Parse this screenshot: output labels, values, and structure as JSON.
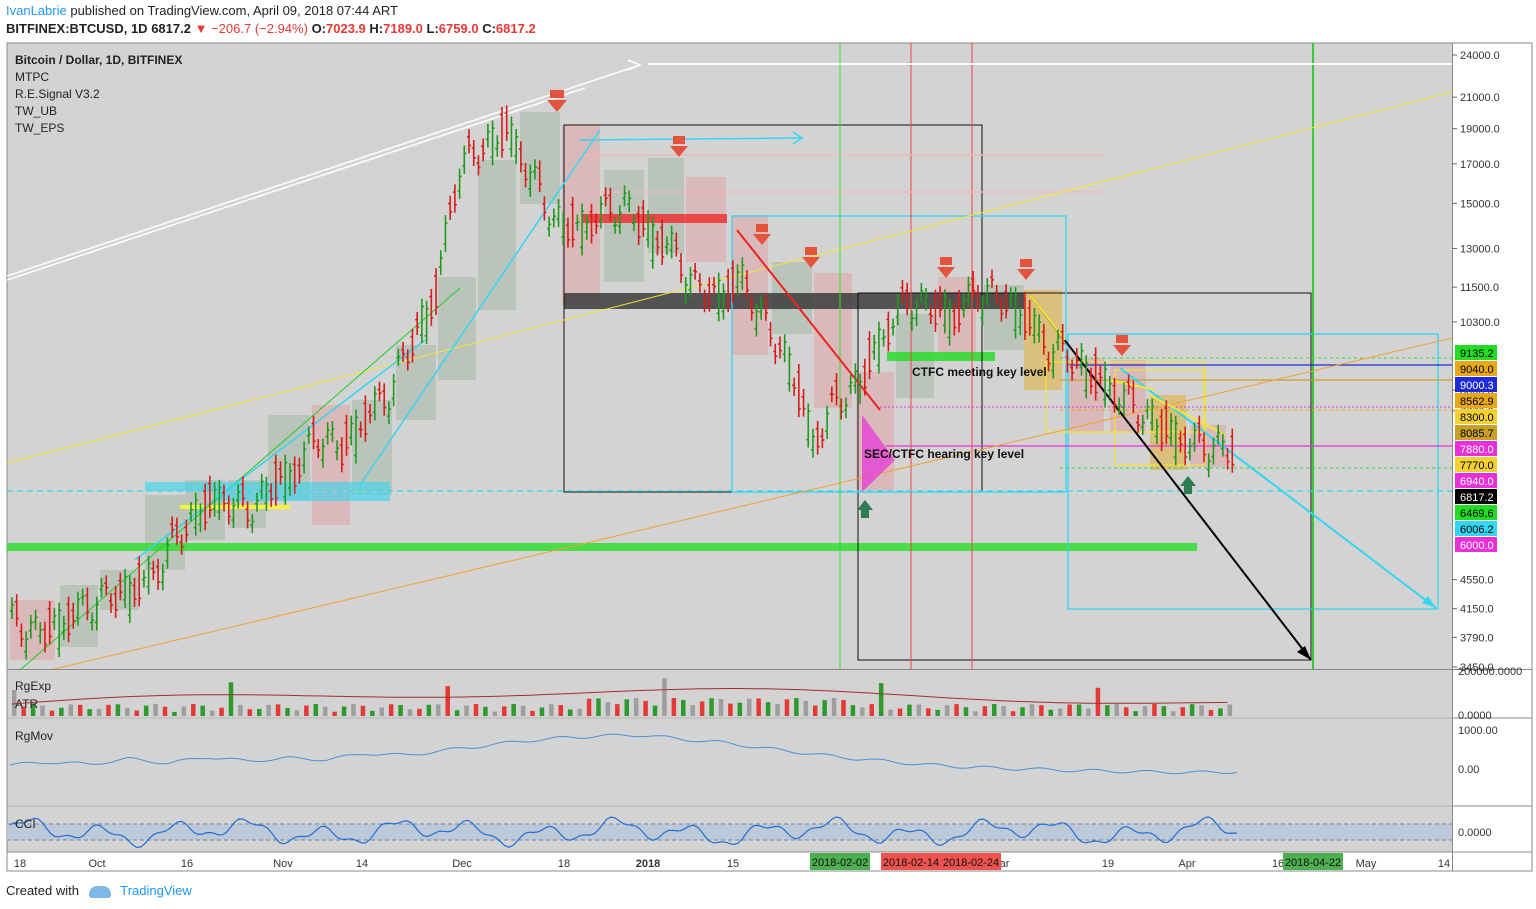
{
  "header": {
    "author": "IvanLabrie",
    "published_text": "published on TradingView.com, April 09, 2018 07:44 ART",
    "symbol": "BITFINEX:BTCUSD, 1D",
    "last": "6817.2",
    "change": "−206.7 (−2.94%)",
    "open_label": "O:",
    "open": "7023.9",
    "high_label": "H:",
    "high": "7189.0",
    "low_label": "L:",
    "low": "6759.0",
    "close_label": "C:",
    "close": "6817.2"
  },
  "legend": {
    "title": "Bitcoin / Dollar, 1D, BITFINEX",
    "indicators": [
      "MTPC",
      "R.E.Signal V3.2",
      "TW_UB",
      "TW_EPS"
    ]
  },
  "panes": {
    "volume": [
      "RgExp",
      "ATR"
    ],
    "momentum": "RgMov",
    "cci": "CCI"
  },
  "annotations": {
    "ctfc": "CTFC meeting key level",
    "sec": "SEC/CTFC hearing key level"
  },
  "footer": {
    "created": "Created with",
    "brand": "TradingView"
  },
  "chart_data": {
    "type": "line",
    "y_ticks": [
      "24000.0",
      "21000.0",
      "19000.0",
      "17000.0",
      "15000.0",
      "13000.0",
      "11500.0",
      "10300.0",
      "8300.0",
      "7770.0",
      "4550.0",
      "4150.0",
      "3790.0",
      "3450.0"
    ],
    "x_ticks": [
      "18",
      "Oct",
      "16",
      "Nov",
      "14",
      "Dec",
      "18",
      "2018",
      "15",
      "Mar",
      "19",
      "Apr",
      "16",
      "May",
      "14"
    ],
    "x_highlight_labels": [
      {
        "label": "2018-02-02",
        "color": "#4caf50"
      },
      {
        "label": "2018-02-14",
        "color": "#ef5350"
      },
      {
        "label": "2018-02-24",
        "color": "#ef5350"
      },
      {
        "label": "2018-04-22",
        "color": "#4caf50"
      }
    ],
    "price_labels": [
      {
        "value": "9135.2",
        "bg": "#22dd22",
        "fg": "#000000"
      },
      {
        "value": "9040.0",
        "bg": "#e6a817",
        "fg": "#000000"
      },
      {
        "value": "9000.3",
        "bg": "#1e2bd6",
        "fg": "#ffffff"
      },
      {
        "value": "8562.9",
        "bg": "#e6a817",
        "fg": "#000000"
      },
      {
        "value": "8300.0",
        "bg": "#f5d033",
        "fg": "#000000"
      },
      {
        "value": "8085.7",
        "bg": "#c8a028",
        "fg": "#000000"
      },
      {
        "value": "7880.0",
        "bg": "#e830d8",
        "fg": "#ffffff"
      },
      {
        "value": "7770.0",
        "bg": "#f5d033",
        "fg": "#000000"
      },
      {
        "value": "6940.0",
        "bg": "#e830d8",
        "fg": "#ffffff"
      },
      {
        "value": "6817.2",
        "bg": "#000000",
        "fg": "#ffffff"
      },
      {
        "value": "6469.6",
        "bg": "#22dd22",
        "fg": "#000000"
      },
      {
        "value": "6006.2",
        "bg": "#33d6f0",
        "fg": "#000000"
      },
      {
        "value": "6000.0",
        "bg": "#e830d8",
        "fg": "#ffffff"
      }
    ],
    "volume_ticks": [
      "200000.0000",
      "0.0000"
    ],
    "momentum_ticks": [
      "1000.00",
      "0.00"
    ],
    "cci_ticks": [
      "0.0000"
    ],
    "price_series": [
      4000,
      3850,
      3950,
      4150,
      4300,
      4400,
      4600,
      5200,
      5700,
      5900,
      5650,
      6100,
      6400,
      7200,
      6900,
      7600,
      8200,
      9700,
      11200,
      16800,
      17900,
      18900,
      16500,
      14200,
      13800,
      14500,
      14900,
      13700,
      13000,
      11500,
      11200,
      11800,
      10200,
      9000,
      7000,
      8000,
      8500,
      9900,
      11000,
      10800,
      10500,
      11400,
      11100,
      10500,
      9500,
      9200,
      8600,
      8200,
      7700,
      7300,
      7000,
      6940,
      6817
    ],
    "momentum_series": [
      100,
      180,
      120,
      260,
      150,
      310,
      200,
      280,
      240,
      400,
      350,
      480,
      600,
      720,
      800,
      850,
      870,
      760,
      680,
      540,
      420,
      300,
      210,
      120,
      60,
      20,
      -10,
      -40,
      -60,
      -80,
      -90,
      -70
    ]
  }
}
